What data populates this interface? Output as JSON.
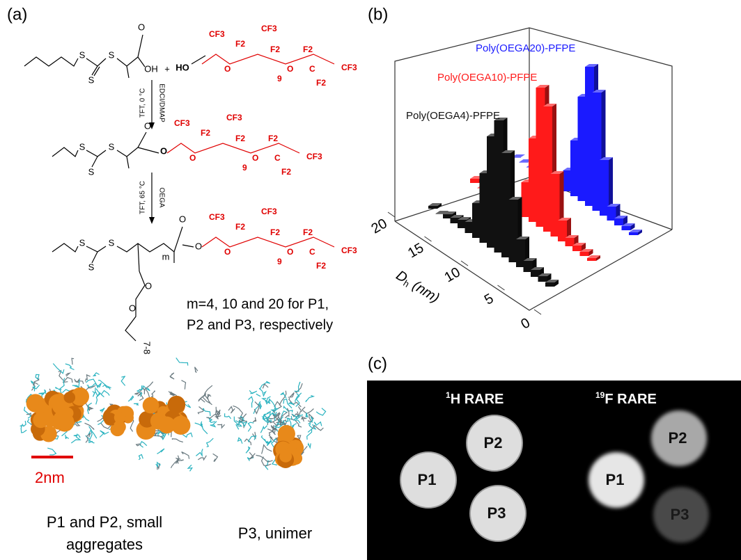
{
  "panel_labels": [
    "(a)",
    "(b)",
    "(c)"
  ],
  "scheme": {
    "steps": [
      {
        "above": "EDCI/DMAP",
        "below": "TFT, 0 °C"
      },
      {
        "above": "OEGA",
        "below": "TFT, 65 °C"
      }
    ],
    "structures": [
      {
        "core": [
          "S",
          "S",
          "S",
          "O",
          "OH",
          "+",
          "HO"
        ],
        "tail": [
          "CF3",
          "F2",
          "O",
          "CF3",
          "F2",
          "9",
          "O",
          "F2",
          "C",
          "F2",
          "CF3"
        ]
      },
      {
        "core": [
          "S",
          "S",
          "S",
          "O",
          "O"
        ],
        "tail": [
          "CF3",
          "F2",
          "O",
          "CF3",
          "F2",
          "9",
          "O",
          "F2",
          "C",
          "F2",
          "CF3"
        ]
      },
      {
        "core": [
          "S",
          "S",
          "S",
          "m",
          "O",
          "O",
          "O",
          "O",
          "7-8"
        ],
        "tail": [
          "CF3",
          "F2",
          "O",
          "CF3",
          "F2",
          "9",
          "O",
          "F2",
          "C",
          "F2",
          "CF3"
        ]
      }
    ],
    "note": [
      "m=4, 10 and 20 for P1,",
      "P2 and P3, respectively"
    ]
  },
  "simulation": {
    "scale_bar": "2nm",
    "captions": [
      [
        "P1 and P2, small",
        "aggregates"
      ],
      [
        "P3, unimer"
      ]
    ]
  },
  "chart_data": {
    "type": "bar3d",
    "axis_label": {
      "symbol": "D",
      "subscript": "h",
      "unit": "(nm)"
    },
    "x": [
      4,
      5,
      6,
      7,
      8,
      9,
      10,
      11,
      12,
      13,
      14,
      15,
      16,
      17,
      18,
      19,
      20
    ],
    "xlim": [
      0,
      20
    ],
    "xticks": [
      0,
      5,
      10,
      15,
      20
    ],
    "series": [
      {
        "name": "Poly(OEGA4)-PFPE",
        "color": "#111111",
        "values": [
          3,
          4,
          5,
          8,
          20,
          45,
          75,
          95,
          80,
          50,
          25,
          8,
          6,
          4,
          3,
          0,
          2
        ]
      },
      {
        "name": "Poly(OEGA10)-PFPE",
        "color": "#ff1a1a",
        "values": [
          2,
          3,
          4,
          6,
          15,
          45,
          90,
          100,
          60,
          25,
          8,
          3,
          0,
          0,
          0,
          0,
          3
        ]
      },
      {
        "name": "Poly(OEGA20)-PFPE",
        "color": "#1a1aff",
        "values": [
          2,
          3,
          5,
          10,
          40,
          85,
          100,
          75,
          40,
          15,
          5,
          2,
          0,
          0,
          0,
          0,
          0
        ]
      }
    ]
  },
  "mri": {
    "titles": [
      {
        "sup": "1",
        "text": "H RARE"
      },
      {
        "sup": "19",
        "text": "F RARE"
      }
    ],
    "samples": [
      "P1",
      "P2",
      "P3"
    ]
  }
}
